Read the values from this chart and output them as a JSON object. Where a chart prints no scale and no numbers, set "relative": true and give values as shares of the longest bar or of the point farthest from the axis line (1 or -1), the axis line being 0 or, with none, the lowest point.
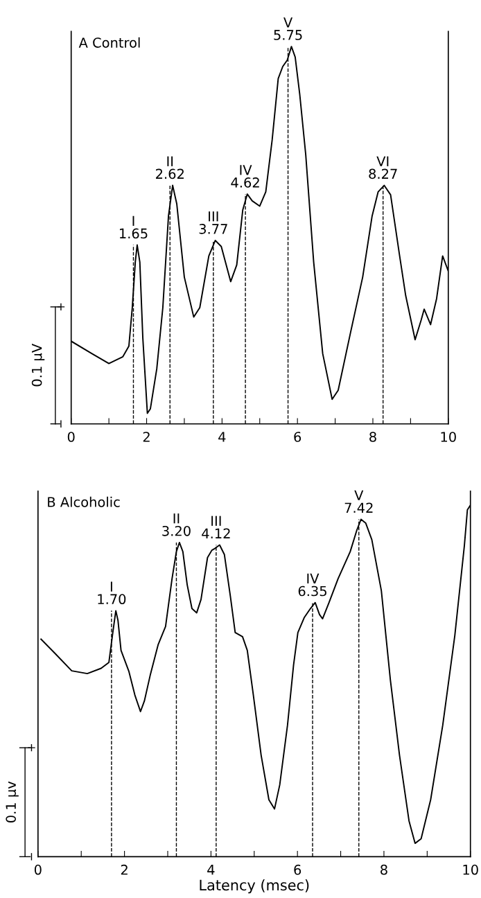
{
  "chart_data": [
    {
      "type": "line",
      "title": "A Control",
      "ylabel": "0.1 µV",
      "relative": true,
      "annotations": [
        "+",
        "−"
      ],
      "xlim": [
        0,
        10
      ],
      "xticks": [
        0,
        {
          "value": 1,
          "label": null
        },
        2,
        {
          "value": 3,
          "label": null
        },
        4,
        {
          "value": 5,
          "label": null
        },
        6,
        {
          "value": 7,
          "label": null
        },
        8,
        {
          "value": 9,
          "label": null
        },
        10
      ],
      "grid": false,
      "marker": "none",
      "line_style": "solid",
      "series": [
        {
          "color": "#000000",
          "x": [
            0,
            0.55,
            1.0,
            1.37,
            1.53,
            1.62,
            1.7,
            1.75,
            1.82,
            1.9,
            2.02,
            2.1,
            2.27,
            2.43,
            2.58,
            2.69,
            2.8,
            3.0,
            3.25,
            3.41,
            3.65,
            3.82,
            3.98,
            4.23,
            4.39,
            4.55,
            4.67,
            4.8,
            5.0,
            5.16,
            5.33,
            5.49,
            5.61,
            5.73,
            5.84,
            5.94,
            6.06,
            6.22,
            6.43,
            6.67,
            6.92,
            7.08,
            7.41,
            7.73,
            7.98,
            8.14,
            8.3,
            8.47,
            8.71,
            8.87,
            9.12,
            9.28,
            9.36,
            9.53,
            9.69,
            9.85,
            10.0
          ],
          "values": [
            0.219,
            0.186,
            0.16,
            0.178,
            0.206,
            0.308,
            0.429,
            0.474,
            0.429,
            0.227,
            0.028,
            0.04,
            0.146,
            0.308,
            0.551,
            0.632,
            0.583,
            0.389,
            0.283,
            0.308,
            0.445,
            0.486,
            0.47,
            0.377,
            0.421,
            0.567,
            0.609,
            0.591,
            0.577,
            0.615,
            0.753,
            0.915,
            0.947,
            0.964,
            1.0,
            0.972,
            0.874,
            0.713,
            0.429,
            0.186,
            0.065,
            0.089,
            0.243,
            0.389,
            0.551,
            0.615,
            0.632,
            0.607,
            0.445,
            0.34,
            0.223,
            0.275,
            0.304,
            0.263,
            0.332,
            0.445,
            0.405
          ]
        }
      ],
      "ref_lines": [
        {
          "axis": "x",
          "value": 1.65,
          "label": "I\n1.65",
          "line_style": "dashed"
        },
        {
          "axis": "x",
          "value": 2.62,
          "label": "II\n2.62",
          "line_style": "dashed"
        },
        {
          "axis": "x",
          "value": 3.77,
          "label": "III\n3.77",
          "line_style": "dashed"
        },
        {
          "axis": "x",
          "value": 4.62,
          "label": "IV\n4.62",
          "line_style": "dashed"
        },
        {
          "axis": "x",
          "value": 5.75,
          "label": "V\n5.75",
          "line_style": "dashed"
        },
        {
          "axis": "x",
          "value": 8.27,
          "label": "VI\n8.27",
          "line_style": "dashed"
        }
      ]
    },
    {
      "type": "line",
      "title": "B Alcoholic",
      "ylabel": "0.1 µv",
      "xlabel": "Latency (msec)",
      "relative": true,
      "annotations": [
        "+",
        "−"
      ],
      "xlim": [
        0,
        10
      ],
      "xticks": [
        0,
        {
          "value": 1,
          "label": null
        },
        2,
        {
          "value": 3,
          "label": null
        },
        4,
        {
          "value": 5,
          "label": null
        },
        6,
        {
          "value": 7,
          "label": null
        },
        8,
        {
          "value": 9,
          "label": null
        },
        10
      ],
      "grid": false,
      "marker": "none",
      "line_style": "solid",
      "series": [
        {
          "color": "#000000",
          "x": [
            0.07,
            0.39,
            0.78,
            1.14,
            1.46,
            1.64,
            1.73,
            1.8,
            1.85,
            1.92,
            2.1,
            2.24,
            2.37,
            2.46,
            2.6,
            2.78,
            2.95,
            3.1,
            3.2,
            3.27,
            3.35,
            3.45,
            3.56,
            3.67,
            3.77,
            3.92,
            4.02,
            4.09,
            4.2,
            4.31,
            4.45,
            4.56,
            4.73,
            4.84,
            4.98,
            5.16,
            5.34,
            5.47,
            5.59,
            5.77,
            5.91,
            6.01,
            6.16,
            6.3,
            6.41,
            6.51,
            6.58,
            6.73,
            6.94,
            7.22,
            7.37,
            7.47,
            7.58,
            7.72,
            7.94,
            8.15,
            8.36,
            8.58,
            8.72,
            8.86,
            9.08,
            9.36,
            9.64,
            9.86,
            9.93,
            10.0
          ],
          "values": [
            0.619,
            0.579,
            0.529,
            0.521,
            0.536,
            0.553,
            0.638,
            0.7,
            0.672,
            0.587,
            0.528,
            0.46,
            0.413,
            0.443,
            0.519,
            0.604,
            0.655,
            0.791,
            0.868,
            0.894,
            0.868,
            0.774,
            0.706,
            0.694,
            0.732,
            0.851,
            0.872,
            0.877,
            0.887,
            0.86,
            0.74,
            0.638,
            0.626,
            0.587,
            0.46,
            0.289,
            0.162,
            0.136,
            0.204,
            0.374,
            0.545,
            0.638,
            0.681,
            0.706,
            0.723,
            0.689,
            0.677,
            0.723,
            0.791,
            0.868,
            0.928,
            0.96,
            0.949,
            0.902,
            0.757,
            0.502,
            0.289,
            0.102,
            0.038,
            0.051,
            0.162,
            0.374,
            0.63,
            0.885,
            0.987,
            1.0
          ]
        }
      ],
      "ref_lines": [
        {
          "axis": "x",
          "value": 1.7,
          "label": "I\n1.70",
          "line_style": "dashed"
        },
        {
          "axis": "x",
          "value": 3.2,
          "label": "II\n3.20",
          "line_style": "dashed"
        },
        {
          "axis": "x",
          "value": 4.12,
          "label": "III\n4.12",
          "line_style": "dashed"
        },
        {
          "axis": "x",
          "value": 6.35,
          "label": "IV\n6.35",
          "line_style": "dashed"
        },
        {
          "axis": "x",
          "value": 7.42,
          "label": "V\n7.42",
          "line_style": "dashed"
        }
      ]
    }
  ]
}
